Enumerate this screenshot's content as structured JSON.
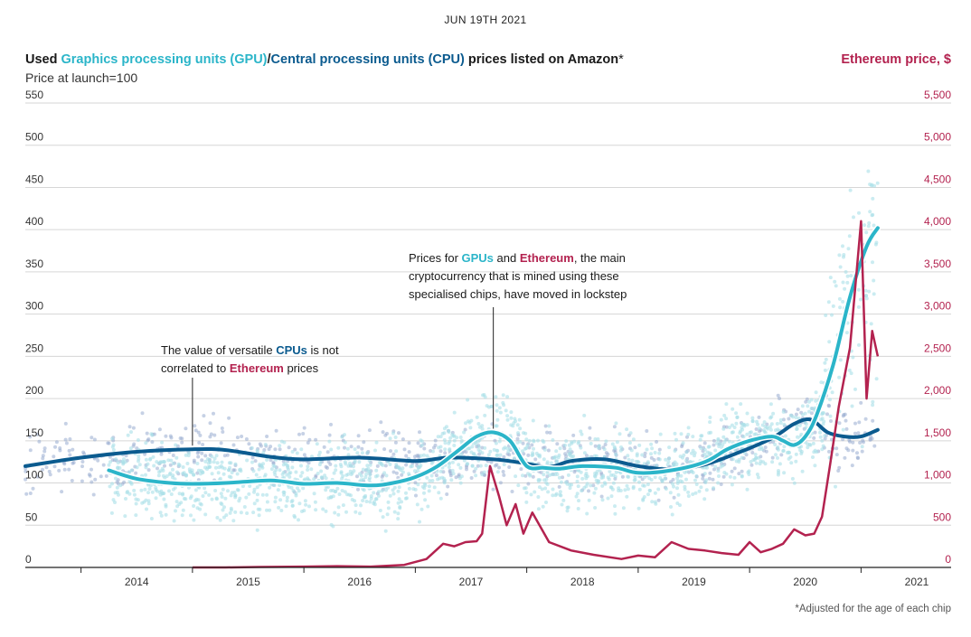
{
  "header": {
    "date": "JUN 19TH 2021",
    "title_prefix": "Used ",
    "title_gpu": "Graphics processing units (GPU)",
    "title_sep": "/",
    "title_cpu": "Central processing units (CPU)",
    "title_suffix": " prices listed on Amazon",
    "title_star": "*",
    "subtitle": "Price at launch=100",
    "right_title": "Ethereum price, $",
    "footnote": "*Adjusted for the age of each chip"
  },
  "annotations": {
    "cpu_1": "The value of versatile ",
    "cpu_cpus": "CPUs",
    "cpu_2": " is not",
    "cpu_3": "correlated to ",
    "cpu_eth": "Ethereum",
    "cpu_4": " prices",
    "gpu_1": "Prices for ",
    "gpu_gpus": "GPUs",
    "gpu_2": " and ",
    "gpu_eth": "Ethereum",
    "gpu_3": ", the main",
    "gpu_4": "cryptocurrency that is mined using these",
    "gpu_5": "specialised chips, have moved in lockstep"
  },
  "colors": {
    "gpu": "#2bb5c9",
    "gpu_dots": "#a8dfe8",
    "cpu": "#0b5b8f",
    "cpu_dots": "#98acd0",
    "eth": "#b3224f",
    "grid": "#d6d6d6"
  },
  "chart_data": {
    "type": "line",
    "title": "Used Graphics processing units (GPU)/Central processing units (CPU) prices listed on Amazon*",
    "xlabel": "",
    "ylabel": "Price at launch=100",
    "y2label": "Ethereum price, $",
    "ylim": [
      0,
      550
    ],
    "y2lim": [
      0,
      5500
    ],
    "xlim": [
      2013.5,
      2021.5
    ],
    "grid": true,
    "yticks": [
      "0",
      "50",
      "100",
      "150",
      "200",
      "250",
      "300",
      "350",
      "400",
      "450",
      "500",
      "550"
    ],
    "y2ticks": [
      "0",
      "500",
      "1,000",
      "1,500",
      "2,000",
      "2,500",
      "3,000",
      "3,500",
      "4,000",
      "4,500",
      "5,000",
      "5,500"
    ],
    "xticks": [
      "2014",
      "2015",
      "2016",
      "2017",
      "2018",
      "2019",
      "2020",
      "2021"
    ],
    "series": [
      {
        "name": "Central processing units (CPU)",
        "axis": "left",
        "x": [
          2013.5,
          2014.0,
          2014.5,
          2015.0,
          2015.3,
          2015.7,
          2016.0,
          2016.5,
          2017.0,
          2017.3,
          2017.7,
          2017.95,
          2018.2,
          2018.4,
          2018.7,
          2019.0,
          2019.3,
          2019.6,
          2019.9,
          2020.2,
          2020.4,
          2020.55,
          2020.7,
          2020.85,
          2021.0,
          2021.15
        ],
        "values": [
          120,
          130,
          137,
          140,
          139,
          131,
          128,
          130,
          126,
          130,
          128,
          124,
          119,
          126,
          128,
          120,
          116,
          122,
          136,
          153,
          170,
          175,
          160,
          155,
          155,
          163
        ]
      },
      {
        "name": "Graphics processing units (GPU)",
        "axis": "left",
        "x": [
          2014.25,
          2014.5,
          2014.8,
          2015.0,
          2015.3,
          2015.7,
          2016.0,
          2016.3,
          2016.6,
          2016.8,
          2017.0,
          2017.2,
          2017.4,
          2017.55,
          2017.7,
          2017.85,
          2018.0,
          2018.15,
          2018.3,
          2018.5,
          2018.8,
          2019.0,
          2019.3,
          2019.6,
          2019.8,
          2020.0,
          2020.2,
          2020.3,
          2020.4,
          2020.5,
          2020.6,
          2020.75,
          2020.9,
          2021.05,
          2021.15
        ],
        "values": [
          115,
          105,
          100,
          99,
          100,
          103,
          99,
          100,
          97,
          100,
          107,
          120,
          140,
          155,
          160,
          150,
          120,
          118,
          117,
          120,
          118,
          112,
          115,
          125,
          140,
          150,
          155,
          150,
          145,
          155,
          180,
          240,
          320,
          380,
          402
        ]
      },
      {
        "name": "Ethereum",
        "axis": "right",
        "x": [
          2015.0,
          2015.3,
          2015.6,
          2016.0,
          2016.3,
          2016.6,
          2016.9,
          2017.1,
          2017.25,
          2017.35,
          2017.45,
          2017.55,
          2017.6,
          2017.67,
          2017.75,
          2017.82,
          2017.9,
          2017.97,
          2018.05,
          2018.2,
          2018.4,
          2018.6,
          2018.85,
          2019.0,
          2019.15,
          2019.3,
          2019.45,
          2019.6,
          2019.75,
          2019.9,
          2020.0,
          2020.1,
          2020.2,
          2020.3,
          2020.4,
          2020.5,
          2020.58,
          2020.65,
          2020.72,
          2020.8,
          2020.9,
          2021.0,
          2021.05,
          2021.1,
          2021.15
        ],
        "values": [
          0,
          0,
          5,
          10,
          15,
          10,
          30,
          100,
          280,
          250,
          300,
          310,
          400,
          1200,
          850,
          500,
          750,
          400,
          650,
          300,
          200,
          150,
          100,
          140,
          120,
          300,
          220,
          200,
          170,
          150,
          300,
          180,
          220,
          280,
          450,
          380,
          400,
          600,
          1200,
          1900,
          2600,
          4100,
          2000,
          2800,
          2500
        ]
      }
    ]
  }
}
